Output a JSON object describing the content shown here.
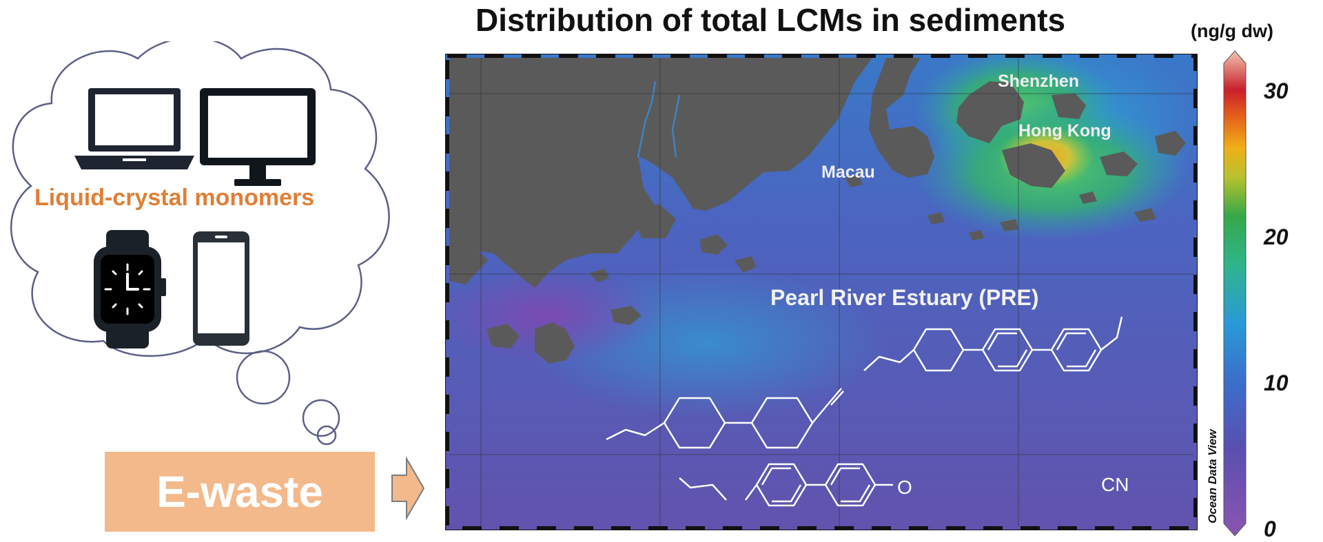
{
  "title": "Distribution of total LCMs in sediments",
  "colorbar": {
    "unit": "(ng/g dw)",
    "ticks": [
      {
        "label": "0",
        "value": 0
      },
      {
        "label": "10",
        "value": 10
      },
      {
        "label": "20",
        "value": 20
      },
      {
        "label": "30",
        "value": 30
      }
    ],
    "min": 0,
    "max": 32,
    "credit": "Ocean Data View"
  },
  "cloud": {
    "label": "Liquid-crystal monomers",
    "devices": [
      "laptop-icon",
      "monitor-icon",
      "smartwatch-icon",
      "smartphone-icon"
    ]
  },
  "source": {
    "label": "E-waste"
  },
  "map": {
    "places": {
      "shenzhen": "Shenzhen",
      "hong_kong": "Hong Kong",
      "macau": "Macau",
      "estuary": "Pearl River Estuary (PRE)"
    },
    "molecules": {
      "cyano_group": "CN",
      "oxygen_atom": "O"
    }
  },
  "colors": {
    "accent_orange": "#e07e36",
    "box_fill": "#f3b98b",
    "land": "#5a5a5a",
    "low": "#7050a8",
    "high": "#f3a21c"
  }
}
